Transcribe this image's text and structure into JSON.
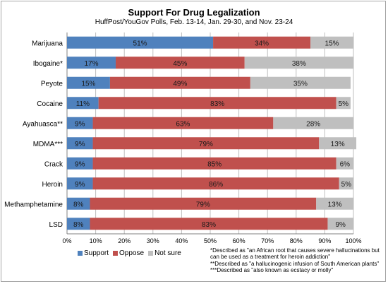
{
  "title": "Support For Drug Legalization",
  "subtitle": "HuffPost/YouGov Polls, Feb. 13-14, Jan. 29-30, and Nov. 23-24",
  "colors": {
    "support": "#4f81bd",
    "oppose": "#c0504d",
    "not_sure": "#bfbfbf",
    "grid": "#bfbfbf"
  },
  "legend": [
    {
      "key": "support",
      "label": "Support"
    },
    {
      "key": "oppose",
      "label": "Oppose"
    },
    {
      "key": "not_sure",
      "label": "Not sure"
    }
  ],
  "footnotes": [
    "*Described as \"an African root that causes severe hallucinations but",
    "can be used as a treatment for heroin addiction\"",
    "**Described as \"a hallucinogenic infusion of South American plants\"",
    "***Described as \"also known as ecstacy or molly\""
  ],
  "chart_data": {
    "type": "bar",
    "orientation": "horizontal",
    "stacked": true,
    "title": "Support For Drug Legalization",
    "subtitle": "HuffPost/YouGov Polls, Feb. 13-14, Jan. 29-30, and Nov. 23-24",
    "categories": [
      "Marijuana",
      "Ibogaine*",
      "Peyote",
      "Cocaine",
      "Ayahuasca**",
      "MDMA***",
      "Crack",
      "Heroin",
      "Methamphetamine",
      "LSD"
    ],
    "series": [
      {
        "name": "Support",
        "values": [
          51,
          17,
          15,
          11,
          9,
          9,
          9,
          9,
          8,
          8
        ]
      },
      {
        "name": "Oppose",
        "values": [
          34,
          45,
          49,
          83,
          63,
          79,
          85,
          86,
          79,
          83
        ]
      },
      {
        "name": "Not sure",
        "values": [
          15,
          38,
          35,
          5,
          28,
          13,
          6,
          5,
          13,
          9
        ]
      }
    ],
    "xlim": [
      0,
      100
    ],
    "xticks": [
      "0%",
      "10%",
      "20%",
      "30%",
      "40%",
      "50%",
      "60%",
      "70%",
      "80%",
      "90%",
      "100%"
    ],
    "grid": true,
    "legend_position": "bottom-left"
  }
}
